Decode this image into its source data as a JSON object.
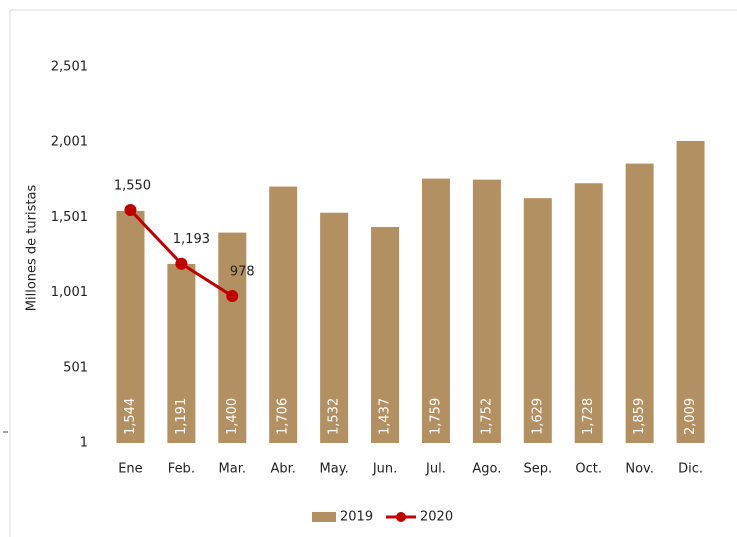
{
  "chart_data": {
    "type": "bar",
    "y_label": "Millones de turistas",
    "categories": [
      "Ene",
      "Feb.",
      "Mar.",
      "Abr.",
      "May.",
      "Jun.",
      "Jul.",
      "Ago.",
      "Sep.",
      "Oct.",
      "Nov.",
      "Dic."
    ],
    "series": [
      {
        "name": "2019",
        "type": "bar",
        "color": "#b39062",
        "values": [
          1544,
          1191,
          1400,
          1706,
          1532,
          1437,
          1759,
          1752,
          1629,
          1728,
          1859,
          2009
        ],
        "value_labels": [
          "1,544",
          "1,191",
          "1,400",
          "1,706",
          "1,532",
          "1,437",
          "1,759",
          "1,752",
          "1,629",
          "1,728",
          "1,859",
          "2,009"
        ]
      },
      {
        "name": "2020",
        "type": "line",
        "color": "#c00000",
        "values": [
          1550,
          1193,
          978,
          null,
          null,
          null,
          null,
          null,
          null,
          null,
          null,
          null
        ],
        "value_labels": [
          "1,550",
          "1,193",
          "978",
          null,
          null,
          null,
          null,
          null,
          null,
          null,
          null,
          null
        ]
      }
    ],
    "ylim": [
      1,
      2501
    ],
    "yticks": [
      1,
      501,
      {
        "value": 1001,
        "label": "1,001"
      },
      {
        "value": 1501,
        "label": "1,501"
      },
      {
        "value": 2001,
        "label": "2,001"
      },
      {
        "value": 2501,
        "label": "2,501"
      }
    ],
    "legend": "bottom"
  }
}
